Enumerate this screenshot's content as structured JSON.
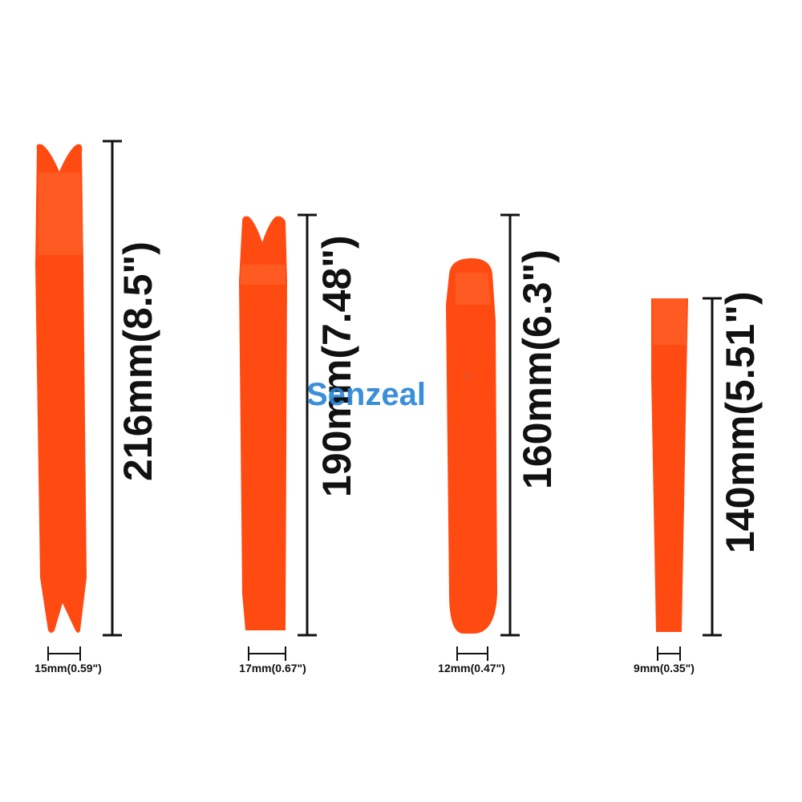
{
  "brand": {
    "name": "Senzeal",
    "mark": "®",
    "color": "#2a86d6"
  },
  "tool_color": "#ff4a12",
  "tools": [
    {
      "length_label": "216mm(8.5\")",
      "width_label": "15mm(0.59\")",
      "tip": "fork",
      "end": "fork"
    },
    {
      "length_label": "190mm(7.48\")",
      "width_label": "17mm(0.67\")",
      "tip": "fork",
      "end": "flat"
    },
    {
      "length_label": "160mm(6.3\")",
      "width_label": "12mm(0.47\")",
      "tip": "rounded",
      "end": "rounded"
    },
    {
      "length_label": "140mm(5.51\")",
      "width_label": "9mm(0.35\")",
      "tip": "flat",
      "end": "flat"
    }
  ]
}
